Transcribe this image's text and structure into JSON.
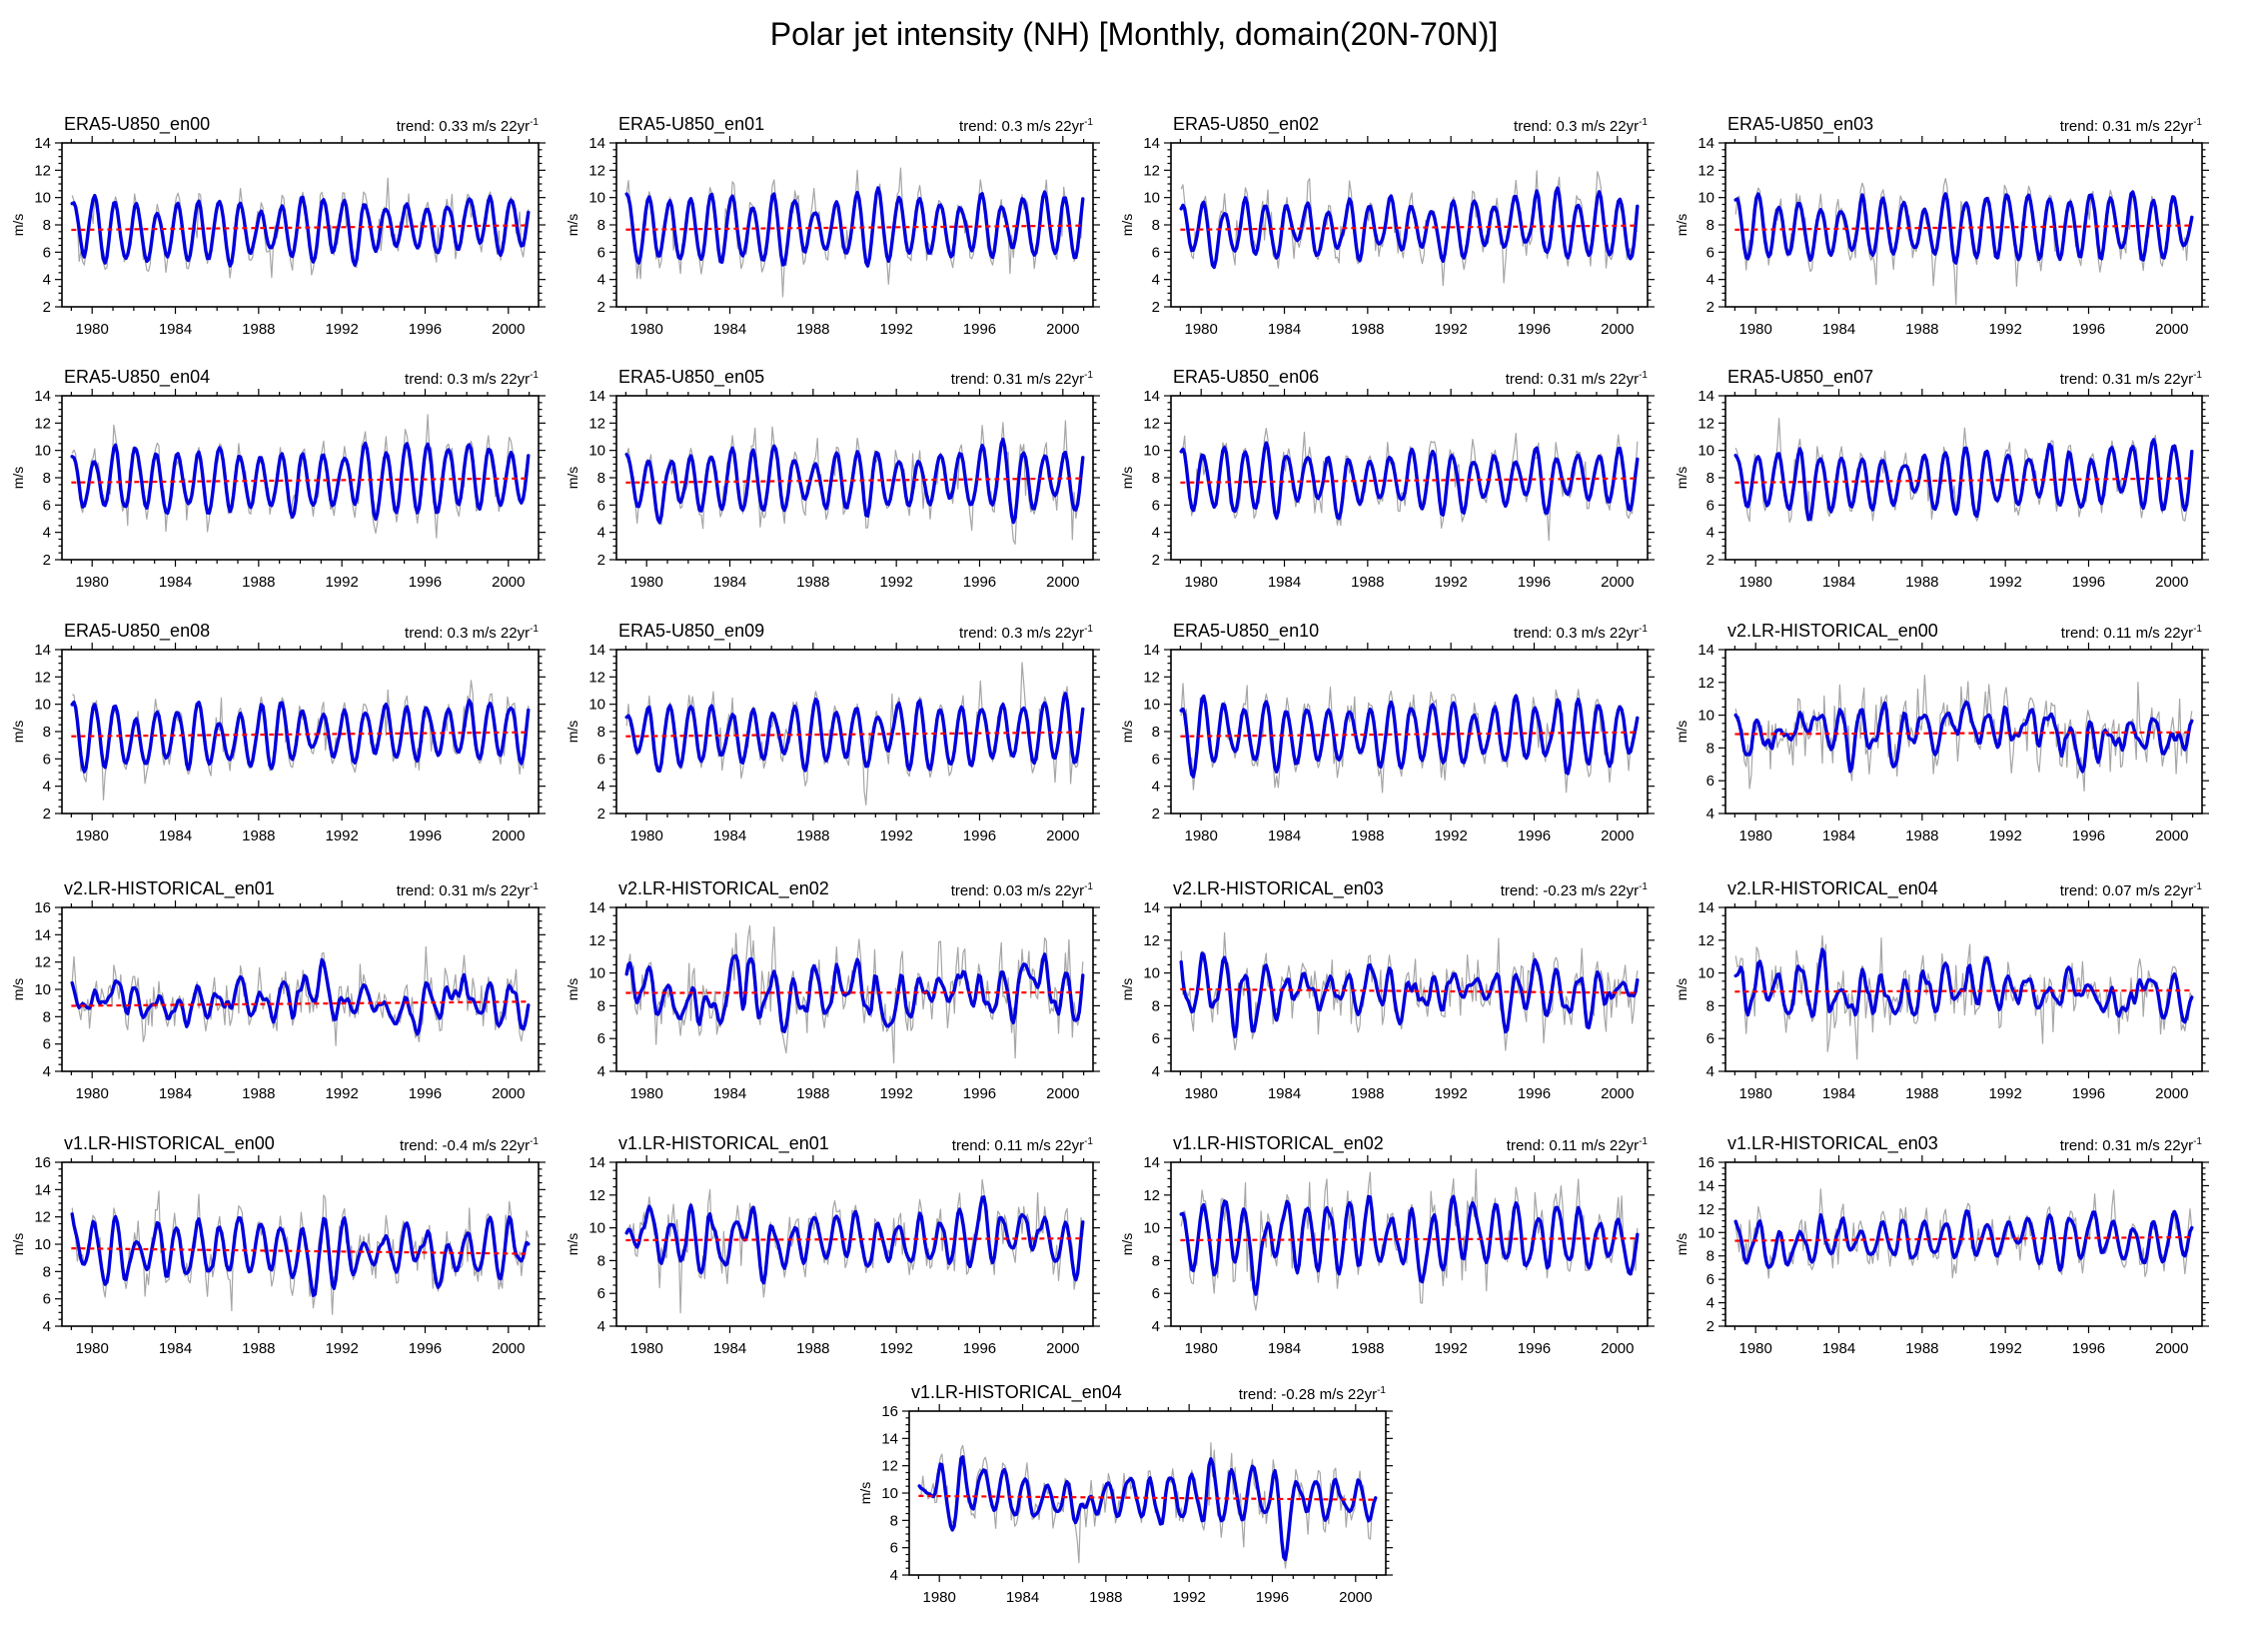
{
  "figure_title": "Polar jet intensity (NH) [Monthly, domain(20N-70N)]",
  "trend_prefix": "trend:",
  "trend_sup_label": "-1",
  "ylabel": "m/s",
  "colors": {
    "raw_monthly": "#a6a6a6",
    "smoothed": "#0000dd",
    "trend_line": "#ff0000",
    "axis": "#000000"
  },
  "chart_data": {
    "type": "line",
    "figure_title": "Polar jet intensity (NH) [Monthly, domain(20N-70N)]",
    "x_axis": {
      "data_start_year": 1979,
      "data_end_year": 2001,
      "range": [
        1978.55,
        2001.45
      ],
      "major_tick_labels": [
        "1980",
        "1984",
        "1988",
        "1992",
        "1996",
        "2000"
      ],
      "major_ticks": [
        1980,
        1984,
        1988,
        1992,
        1996,
        2000
      ],
      "minor_tick_step_years": 1
    },
    "y_axis": {
      "label": "m/s",
      "minor_tick_step": 0.5
    },
    "series_legend": [
      {
        "name": "monthly-raw",
        "color": "#a6a6a6",
        "style": "thin solid"
      },
      {
        "name": "smoothed-monthly",
        "color": "#0000dd",
        "style": "thick solid"
      },
      {
        "name": "linear-trend",
        "color": "#ff0000",
        "style": "dashed"
      }
    ],
    "panels": [
      {
        "title": "ERA5-U850_en00",
        "trend_label": "trend: 0.33 m/s 22yr",
        "trend_value": 0.33,
        "ylim": [
          2,
          14
        ],
        "yticks": [
          2,
          4,
          6,
          8,
          10,
          12,
          14
        ],
        "mean": 7.8,
        "style": "era5",
        "row": 0,
        "col": 0,
        "seed": 101
      },
      {
        "title": "ERA5-U850_en01",
        "trend_label": "trend: 0.3 m/s 22yr",
        "trend_value": 0.3,
        "ylim": [
          2,
          14
        ],
        "yticks": [
          2,
          4,
          6,
          8,
          10,
          12,
          14
        ],
        "mean": 7.8,
        "style": "era5",
        "row": 0,
        "col": 1,
        "seed": 102
      },
      {
        "title": "ERA5-U850_en02",
        "trend_label": "trend: 0.3 m/s 22yr",
        "trend_value": 0.3,
        "ylim": [
          2,
          14
        ],
        "yticks": [
          2,
          4,
          6,
          8,
          10,
          12,
          14
        ],
        "mean": 7.8,
        "style": "era5",
        "row": 0,
        "col": 2,
        "seed": 103
      },
      {
        "title": "ERA5-U850_en03",
        "trend_label": "trend: 0.31 m/s 22yr",
        "trend_value": 0.31,
        "ylim": [
          2,
          14
        ],
        "yticks": [
          2,
          4,
          6,
          8,
          10,
          12,
          14
        ],
        "mean": 7.8,
        "style": "era5",
        "row": 0,
        "col": 3,
        "seed": 104
      },
      {
        "title": "ERA5-U850_en04",
        "trend_label": "trend: 0.3 m/s 22yr",
        "trend_value": 0.3,
        "ylim": [
          2,
          14
        ],
        "yticks": [
          2,
          4,
          6,
          8,
          10,
          12,
          14
        ],
        "mean": 7.8,
        "style": "era5",
        "row": 1,
        "col": 0,
        "seed": 105
      },
      {
        "title": "ERA5-U850_en05",
        "trend_label": "trend: 0.31 m/s 22yr",
        "trend_value": 0.31,
        "ylim": [
          2,
          14
        ],
        "yticks": [
          2,
          4,
          6,
          8,
          10,
          12,
          14
        ],
        "mean": 7.8,
        "style": "era5",
        "row": 1,
        "col": 1,
        "seed": 106
      },
      {
        "title": "ERA5-U850_en06",
        "trend_label": "trend: 0.31 m/s 22yr",
        "trend_value": 0.31,
        "ylim": [
          2,
          14
        ],
        "yticks": [
          2,
          4,
          6,
          8,
          10,
          12,
          14
        ],
        "mean": 7.8,
        "style": "era5",
        "row": 1,
        "col": 2,
        "seed": 107
      },
      {
        "title": "ERA5-U850_en07",
        "trend_label": "trend: 0.31 m/s 22yr",
        "trend_value": 0.31,
        "ylim": [
          2,
          14
        ],
        "yticks": [
          2,
          4,
          6,
          8,
          10,
          12,
          14
        ],
        "mean": 7.8,
        "style": "era5",
        "row": 1,
        "col": 3,
        "seed": 108
      },
      {
        "title": "ERA5-U850_en08",
        "trend_label": "trend: 0.3 m/s 22yr",
        "trend_value": 0.3,
        "ylim": [
          2,
          14
        ],
        "yticks": [
          2,
          4,
          6,
          8,
          10,
          12,
          14
        ],
        "mean": 7.8,
        "style": "era5",
        "row": 2,
        "col": 0,
        "seed": 109
      },
      {
        "title": "ERA5-U850_en09",
        "trend_label": "trend: 0.3 m/s 22yr",
        "trend_value": 0.3,
        "ylim": [
          2,
          14
        ],
        "yticks": [
          2,
          4,
          6,
          8,
          10,
          12,
          14
        ],
        "mean": 7.8,
        "style": "era5",
        "row": 2,
        "col": 1,
        "seed": 110
      },
      {
        "title": "ERA5-U850_en10",
        "trend_label": "trend: 0.3 m/s 22yr",
        "trend_value": 0.3,
        "ylim": [
          2,
          14
        ],
        "yticks": [
          2,
          4,
          6,
          8,
          10,
          12,
          14
        ],
        "mean": 7.8,
        "style": "era5",
        "row": 2,
        "col": 2,
        "seed": 111
      },
      {
        "title": "v2.LR-HISTORICAL_en00",
        "trend_label": "trend: 0.11 m/s 22yr",
        "trend_value": 0.11,
        "ylim": [
          4,
          14
        ],
        "yticks": [
          4,
          6,
          8,
          10,
          12,
          14
        ],
        "mean": 8.9,
        "style": "v2",
        "row": 2,
        "col": 3,
        "seed": 112
      },
      {
        "title": "v2.LR-HISTORICAL_en01",
        "trend_label": "trend: 0.31 m/s 22yr",
        "trend_value": 0.31,
        "ylim": [
          4,
          16
        ],
        "yticks": [
          4,
          6,
          8,
          10,
          12,
          14,
          16
        ],
        "mean": 8.95,
        "style": "v2",
        "row": 3,
        "col": 0,
        "seed": 113
      },
      {
        "title": "v2.LR-HISTORICAL_en02",
        "trend_label": "trend: 0.03 m/s 22yr",
        "trend_value": 0.03,
        "ylim": [
          4,
          14
        ],
        "yticks": [
          4,
          6,
          8,
          10,
          12,
          14
        ],
        "mean": 8.8,
        "style": "v2",
        "row": 3,
        "col": 1,
        "seed": 114
      },
      {
        "title": "v2.LR-HISTORICAL_en03",
        "trend_label": "trend: -0.23 m/s 22yr",
        "trend_value": -0.23,
        "ylim": [
          4,
          14
        ],
        "yticks": [
          4,
          6,
          8,
          10,
          12,
          14
        ],
        "mean": 8.9,
        "style": "v2",
        "row": 3,
        "col": 2,
        "seed": 115
      },
      {
        "title": "v2.LR-HISTORICAL_en04",
        "trend_label": "trend: 0.07 m/s 22yr",
        "trend_value": 0.07,
        "ylim": [
          4,
          14
        ],
        "yticks": [
          4,
          6,
          8,
          10,
          12,
          14
        ],
        "mean": 8.9,
        "style": "v2",
        "row": 3,
        "col": 3,
        "seed": 116
      },
      {
        "title": "v1.LR-HISTORICAL_en00",
        "trend_label": "trend: -0.4 m/s 22yr",
        "trend_value": -0.4,
        "ylim": [
          4,
          16
        ],
        "yticks": [
          4,
          6,
          8,
          10,
          12,
          14,
          16
        ],
        "mean": 9.5,
        "style": "v1",
        "row": 4,
        "col": 0,
        "seed": 117
      },
      {
        "title": "v1.LR-HISTORICAL_en01",
        "trend_label": "trend: 0.11 m/s 22yr",
        "trend_value": 0.11,
        "ylim": [
          4,
          14
        ],
        "yticks": [
          4,
          6,
          8,
          10,
          12,
          14
        ],
        "mean": 9.3,
        "style": "v1",
        "row": 4,
        "col": 1,
        "seed": 118
      },
      {
        "title": "v1.LR-HISTORICAL_en02",
        "trend_label": "trend: 0.11 m/s 22yr",
        "trend_value": 0.11,
        "ylim": [
          4,
          14
        ],
        "yticks": [
          4,
          6,
          8,
          10,
          12,
          14
        ],
        "mean": 9.3,
        "style": "v1",
        "row": 4,
        "col": 2,
        "seed": 119
      },
      {
        "title": "v1.LR-HISTORICAL_en03",
        "trend_label": "trend: 0.31 m/s 22yr",
        "trend_value": 0.31,
        "ylim": [
          2,
          16
        ],
        "yticks": [
          2,
          4,
          6,
          8,
          10,
          12,
          14,
          16
        ],
        "mean": 9.45,
        "style": "v1",
        "row": 4,
        "col": 3,
        "seed": 120
      },
      {
        "title": "v1.LR-HISTORICAL_en04",
        "trend_label": "trend: -0.28 m/s 22yr",
        "trend_value": -0.28,
        "ylim": [
          4,
          16
        ],
        "yticks": [
          4,
          6,
          8,
          10,
          12,
          14,
          16
        ],
        "mean": 9.65,
        "style": "v1",
        "row": 5,
        "col": "center",
        "seed": 121
      }
    ]
  }
}
